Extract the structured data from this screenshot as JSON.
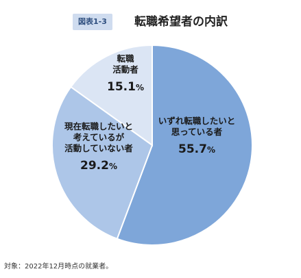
{
  "figure_label": "図表1-3",
  "title": "転職希望者の内訳",
  "footnote": "対象：2022年12月時点の就業者。",
  "chart_data": {
    "type": "pie",
    "start_angle_deg": 0,
    "direction": "clockwise",
    "slices": [
      {
        "label_lines": [
          "いずれ転職したいと",
          "思っている者"
        ],
        "value": 55.7,
        "value_text": "55.7",
        "unit": "%",
        "color": "#7ea6d9"
      },
      {
        "label_lines": [
          "現在転職したいと",
          "考えているが",
          "活動していない者"
        ],
        "value": 29.2,
        "value_text": "29.2",
        "unit": "%",
        "color": "#adc6e8"
      },
      {
        "label_lines": [
          "転職",
          "活動者"
        ],
        "value": 15.1,
        "value_text": "15.1",
        "unit": "%",
        "color": "#dbe5f4"
      }
    ]
  }
}
